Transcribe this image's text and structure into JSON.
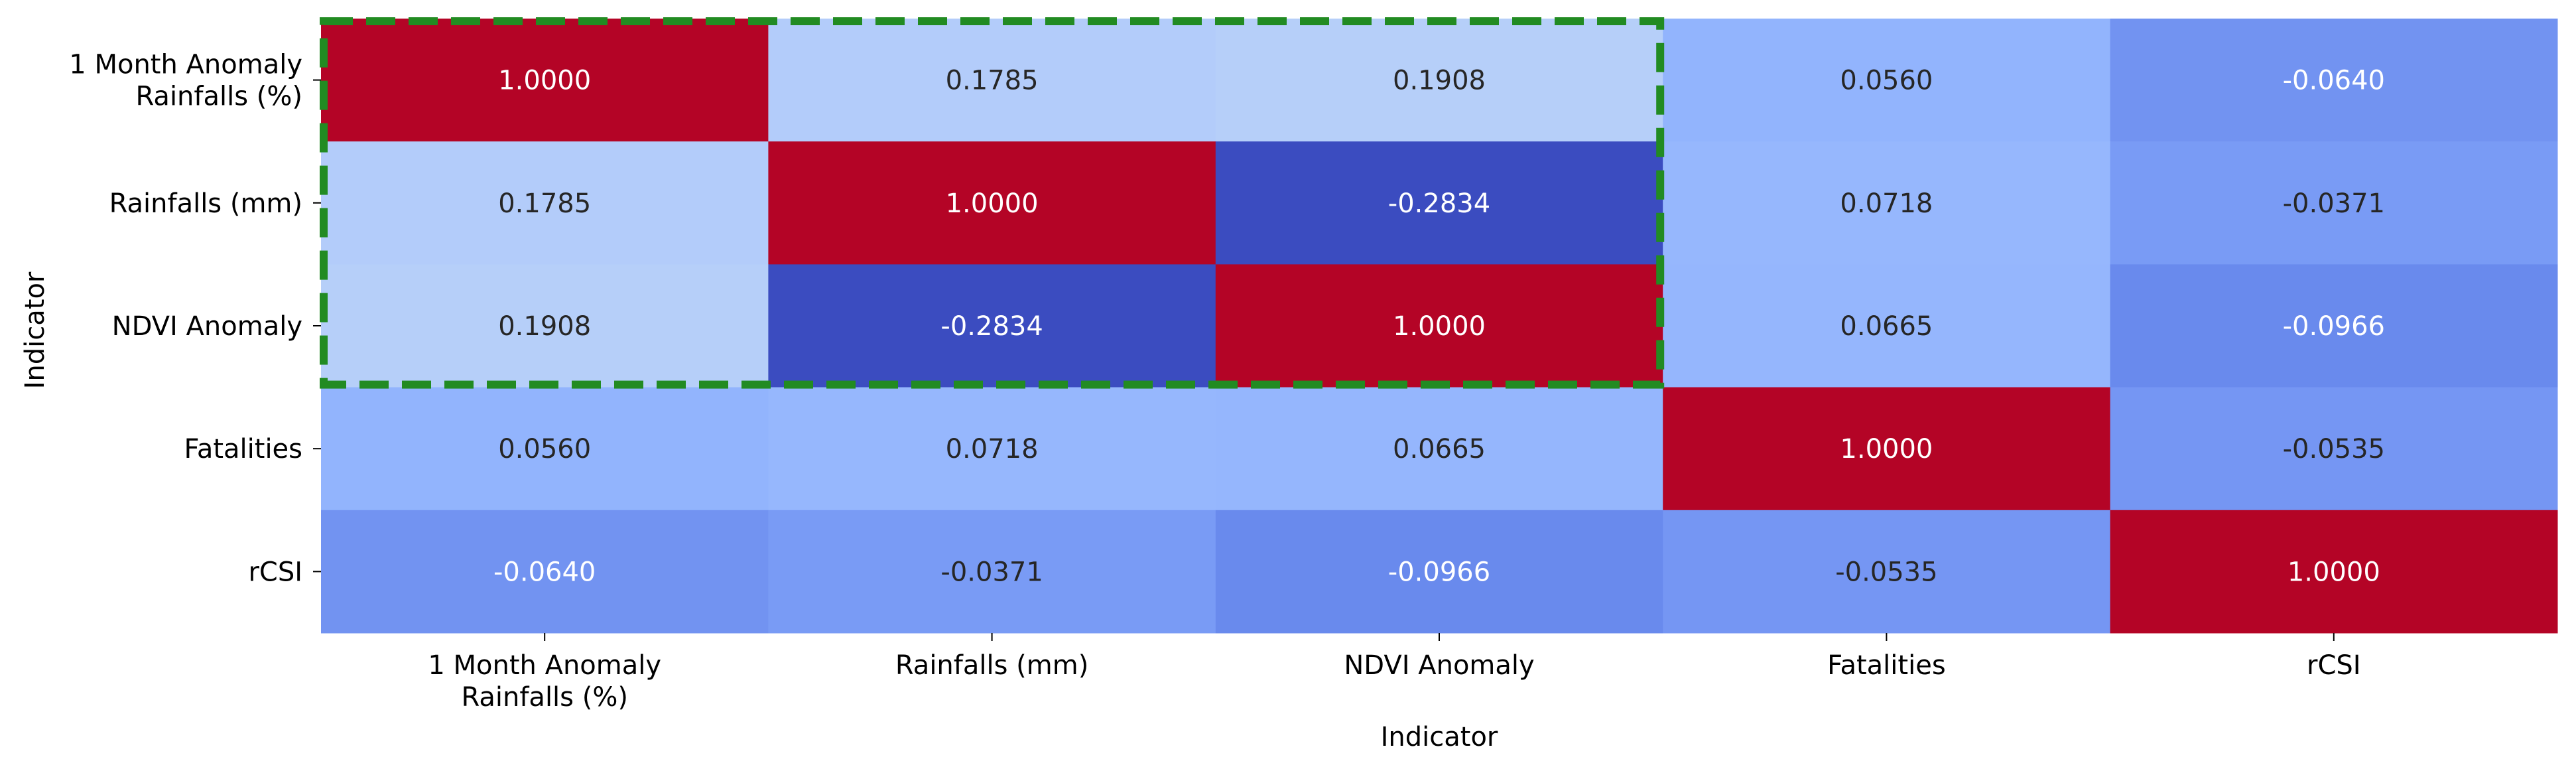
{
  "chart_data": {
    "type": "heatmap",
    "xlabel": "Indicator",
    "ylabel": "Indicator",
    "x_categories": [
      [
        "1 Month Anomaly",
        "Rainfalls (%)"
      ],
      [
        "Rainfalls (mm)"
      ],
      [
        "NDVI Anomaly"
      ],
      [
        "Fatalities"
      ],
      [
        "rCSI"
      ]
    ],
    "y_categories": [
      [
        "1 Month Anomaly",
        "Rainfalls (%)"
      ],
      [
        "Rainfalls (mm)"
      ],
      [
        "NDVI Anomaly"
      ],
      [
        "Fatalities"
      ],
      [
        "rCSI"
      ]
    ],
    "matrix": [
      [
        1.0,
        0.1785,
        0.1908,
        0.056,
        -0.064
      ],
      [
        0.1785,
        1.0,
        -0.2834,
        0.0718,
        -0.0371
      ],
      [
        0.1908,
        -0.2834,
        1.0,
        0.0665,
        -0.0966
      ],
      [
        0.056,
        0.0718,
        0.0665,
        1.0,
        -0.0535
      ],
      [
        -0.064,
        -0.0371,
        -0.0966,
        -0.0535,
        1.0
      ]
    ],
    "cell_labels": [
      [
        "1.0000",
        "0.1785",
        "0.1908",
        "0.0560",
        "-0.0640"
      ],
      [
        "0.1785",
        "1.0000",
        "-0.2834",
        "0.0718",
        "-0.0371"
      ],
      [
        "0.1908",
        "-0.2834",
        "1.0000",
        "0.0665",
        "-0.0966"
      ],
      [
        "0.0560",
        "0.0718",
        "0.0665",
        "1.0000",
        "-0.0535"
      ],
      [
        "-0.0640",
        "-0.0371",
        "-0.0966",
        "-0.0535",
        "1.0000"
      ]
    ],
    "value_range": [
      -0.2834,
      1.0
    ],
    "colormap": "coolwarm",
    "colorbar": false,
    "highlight": {
      "rows": [
        0,
        2
      ],
      "cols": [
        0,
        2
      ],
      "style": "dashed",
      "color": "#228b22"
    }
  }
}
